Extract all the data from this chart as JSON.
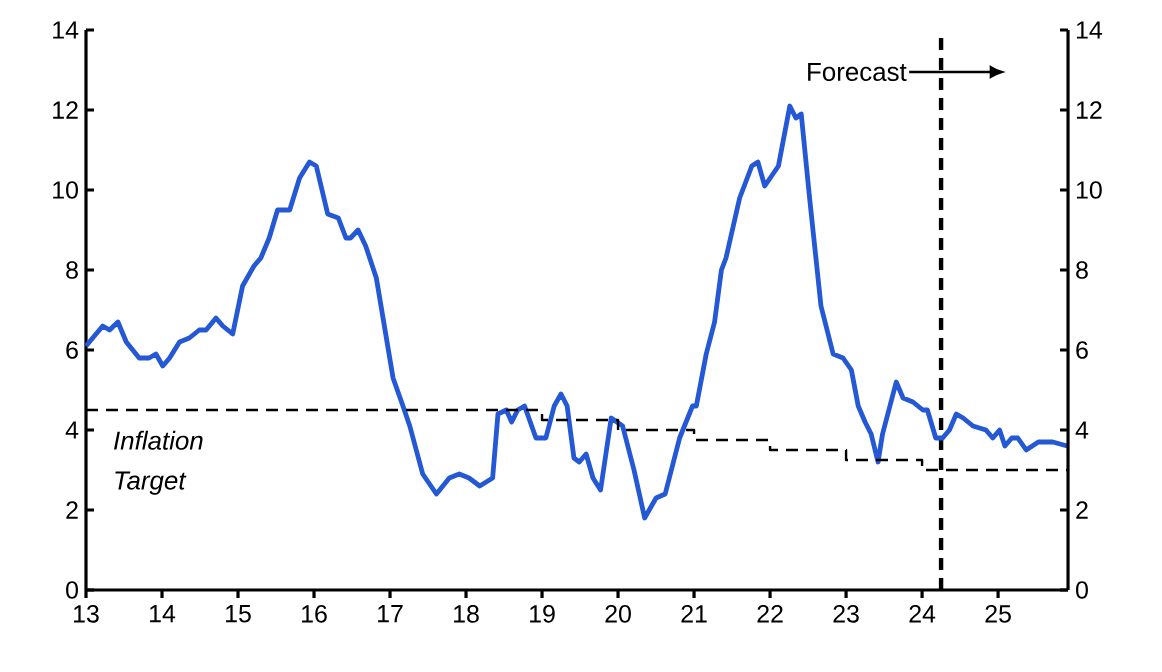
{
  "chart_data": {
    "type": "line",
    "x": [
      13.0,
      13.22,
      13.31,
      13.42,
      13.53,
      13.7,
      13.83,
      13.92,
      14.01,
      14.1,
      14.23,
      14.36,
      14.49,
      14.58,
      14.71,
      14.8,
      14.93,
      15.06,
      15.21,
      15.3,
      15.41,
      15.52,
      15.68,
      15.81,
      15.94,
      16.03,
      16.18,
      16.32,
      16.42,
      16.48,
      16.58,
      16.68,
      16.82,
      17.04,
      17.17,
      17.26,
      17.43,
      17.61,
      17.78,
      17.91,
      18.04,
      18.18,
      18.35,
      18.42,
      18.53,
      18.6,
      18.68,
      18.77,
      18.92,
      19.05,
      19.16,
      19.25,
      19.33,
      19.42,
      19.49,
      19.58,
      19.67,
      19.77,
      19.91,
      20.06,
      20.21,
      20.35,
      20.5,
      20.62,
      20.81,
      20.98,
      21.03,
      21.16,
      21.27,
      21.36,
      21.42,
      21.6,
      21.76,
      21.84,
      21.93,
      22.11,
      22.26,
      22.34,
      22.41,
      22.52,
      22.67,
      22.83,
      22.96,
      23.07,
      23.16,
      23.25,
      23.33,
      23.42,
      23.48,
      23.66,
      23.75,
      23.88,
      24.01,
      24.07,
      24.18,
      24.27,
      24.36,
      24.45,
      24.54,
      24.67,
      24.84,
      24.93,
      25.02,
      25.09,
      25.18,
      25.26,
      25.37,
      25.53,
      25.72,
      25.91
    ],
    "series": [
      {
        "color": "#2458d4",
        "values": [
          6.1,
          6.6,
          6.5,
          6.7,
          6.2,
          5.8,
          5.8,
          5.9,
          5.6,
          5.8,
          6.2,
          6.3,
          6.5,
          6.5,
          6.8,
          6.6,
          6.4,
          7.6,
          8.1,
          8.3,
          8.8,
          9.5,
          9.5,
          10.3,
          10.7,
          10.6,
          9.4,
          9.3,
          8.8,
          8.8,
          9.0,
          8.6,
          7.8,
          5.3,
          4.6,
          4.1,
          2.9,
          2.4,
          2.8,
          2.9,
          2.8,
          2.6,
          2.8,
          4.4,
          4.5,
          4.2,
          4.5,
          4.6,
          3.8,
          3.8,
          4.6,
          4.9,
          4.6,
          3.3,
          3.2,
          3.4,
          2.8,
          2.5,
          4.3,
          4.1,
          3.0,
          1.8,
          2.3,
          2.4,
          3.8,
          4.6,
          4.6,
          5.9,
          6.7,
          8.0,
          8.3,
          9.8,
          10.6,
          10.7,
          10.1,
          10.6,
          12.1,
          11.8,
          11.9,
          9.8,
          7.1,
          5.9,
          5.8,
          5.5,
          4.6,
          4.2,
          3.9,
          3.2,
          3.9,
          5.2,
          4.8,
          4.7,
          4.5,
          4.5,
          3.8,
          3.8,
          4.0,
          4.4,
          4.3,
          4.1,
          4.0,
          3.8,
          4.0,
          3.6,
          3.8,
          3.8,
          3.5,
          3.7,
          3.7,
          3.6
        ]
      },
      {
        "type": "step",
        "color": "#000000",
        "line_style": "dashed",
        "x": [
          13,
          19,
          20,
          21,
          22,
          23,
          24,
          25.92
        ],
        "values": [
          4.5,
          4.25,
          4.0,
          3.75,
          3.5,
          3.25,
          3.0,
          3.0
        ]
      }
    ],
    "xlim": [
      13,
      25.92
    ],
    "xticks": [
      13,
      14,
      15,
      16,
      17,
      18,
      19,
      20,
      21,
      22,
      23,
      24,
      25
    ],
    "ylim": [
      0,
      14
    ],
    "yticks": [
      0,
      2,
      4,
      6,
      8,
      10,
      12,
      14
    ],
    "y2lim": [
      0,
      14
    ],
    "y2ticks": [
      0,
      2,
      4,
      6,
      8,
      10,
      12,
      14
    ],
    "ref_lines": [
      {
        "axis": "x",
        "value": 24.25,
        "label": "Forecast",
        "line_style": "dashed",
        "color": "#000000"
      }
    ],
    "annotations": [
      "Inflation Target"
    ]
  }
}
